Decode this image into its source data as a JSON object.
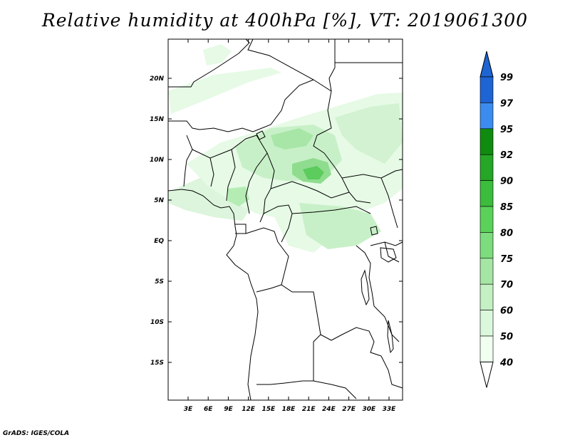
{
  "title": "Relative humidity at 400hPa [%], VT: 2019061300",
  "footer": "GrADS: IGES/COLA",
  "colorbar": {
    "levels": [
      "99",
      "97",
      "95",
      "92",
      "90",
      "85",
      "80",
      "75",
      "70",
      "60",
      "50",
      "40"
    ],
    "colors": [
      "#1e64d2",
      "#1e64d2",
      "#3c8cf0",
      "#0f8c0f",
      "#26a626",
      "#3cbc3c",
      "#5ad25a",
      "#7ddc7d",
      "#a5e6a5",
      "#c4f0c4",
      "#dcf8dc",
      "#f0fff0",
      "#ffffff"
    ]
  },
  "map": {
    "lat_labels": [
      "20N",
      "15N",
      "10N",
      "5N",
      "EQ",
      "5S",
      "10S",
      "15S"
    ],
    "lon_labels": [
      "3E",
      "6E",
      "9E",
      "12E",
      "15E",
      "18E",
      "21E",
      "24E",
      "27E",
      "30E",
      "33E"
    ],
    "land_color": "#ffffff",
    "border_color": "#000000"
  }
}
